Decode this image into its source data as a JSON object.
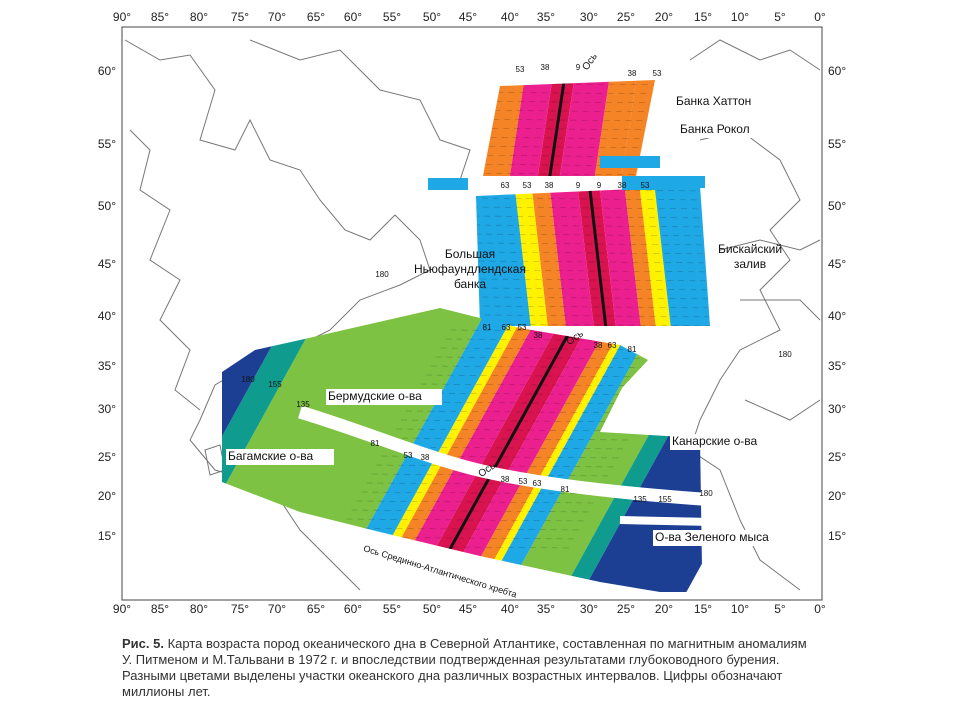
{
  "lon_labels": [
    "90°",
    "85°",
    "80°",
    "75°",
    "70°",
    "65°",
    "60°",
    "55°",
    "50°",
    "45°",
    "40°",
    "35°",
    "30°",
    "25°",
    "20°",
    "15°",
    "10°",
    "5°",
    "0°"
  ],
  "lat_labels": [
    "60°",
    "55°",
    "50°",
    "45°",
    "40°",
    "35°",
    "30°",
    "25°",
    "20°",
    "15°"
  ],
  "places": {
    "hatton": "Банка Хаттон",
    "rockall": "Банка Рокол",
    "newfoundland": [
      "Большая",
      "Ньюфаундлендская",
      "банка"
    ],
    "biscay": [
      "Бискайский",
      "залив"
    ],
    "bermuda": "Бермудские о-ва",
    "bahamas": "Багамские о-ва",
    "canary": "Канарские о-ва",
    "cape_verde": "О-ва Зеленого мыса",
    "ridge": "Ось Срединно-Атлантического хребта"
  },
  "axis_labels": [
    "Ось",
    "Ось",
    "Ось"
  ],
  "age_labels": [
    53,
    38,
    9,
    38,
    53,
    63,
    53,
    38,
    9,
    9,
    38,
    53,
    81,
    63,
    53,
    38,
    38,
    63,
    81,
    81,
    53,
    38,
    38,
    53,
    63,
    81,
    135,
    155,
    180,
    180,
    155,
    135,
    180,
    180
  ],
  "caption": {
    "label": "Рис. 5.",
    "lines": [
      "Карта возраста пород океанического дна в Северной Атлантике, составленная по магнитным аномалиям",
      "У. Питменом и М.Тальвани в 1972 г. и впоследствии подтвержденная результатами глубоководного бурения.",
      "Разными цветами выделены участки океанского дна различных возрастных интервалов. Цифры обозначают",
      "миллионы лет."
    ]
  }
}
